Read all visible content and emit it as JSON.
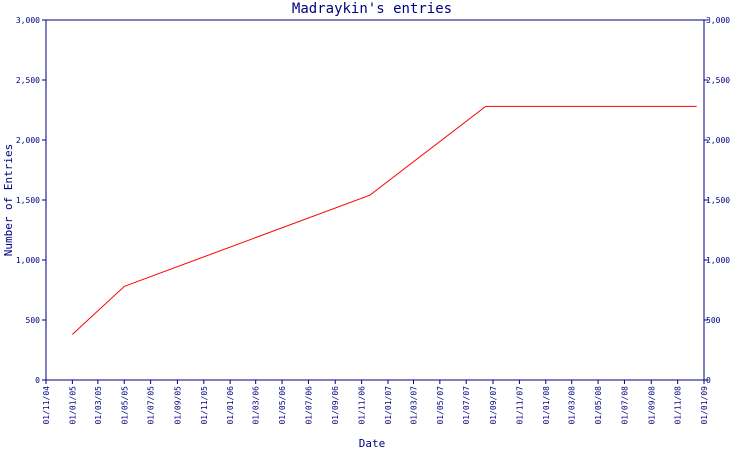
{
  "chart_data": {
    "type": "line",
    "title": "Madraykin's entries",
    "xlabel": "Date",
    "ylabel": "Number of Entries",
    "ylim": [
      0,
      3000
    ],
    "xlim": [
      "2004-11-01",
      "2009-01-01"
    ],
    "y_ticks": [
      "0",
      "500",
      "1,000",
      "1,500",
      "2,000",
      "2,500",
      "3,000"
    ],
    "y_tick_values": [
      0,
      500,
      1000,
      1500,
      2000,
      2500,
      3000
    ],
    "x_ticks": [
      "01/11/04",
      "01/01/05",
      "01/03/05",
      "01/05/05",
      "01/07/05",
      "01/09/05",
      "01/11/05",
      "01/01/06",
      "01/03/06",
      "01/05/06",
      "01/07/06",
      "01/09/06",
      "01/11/06",
      "01/01/07",
      "01/03/07",
      "01/05/07",
      "01/07/07",
      "01/09/07",
      "01/11/07",
      "01/01/08",
      "01/03/08",
      "01/05/08",
      "01/07/08",
      "01/09/08",
      "01/11/08",
      "01/01/09"
    ],
    "x_tick_dates": [
      "2004-11-01",
      "2005-01-01",
      "2005-03-01",
      "2005-05-01",
      "2005-07-01",
      "2005-09-01",
      "2005-11-01",
      "2006-01-01",
      "2006-03-01",
      "2006-05-01",
      "2006-07-01",
      "2006-09-01",
      "2006-11-01",
      "2007-01-01",
      "2007-03-01",
      "2007-05-01",
      "2007-07-01",
      "2007-09-01",
      "2007-11-01",
      "2008-01-01",
      "2008-03-01",
      "2008-05-01",
      "2008-07-01",
      "2008-09-01",
      "2008-11-01",
      "2009-01-01"
    ],
    "grid": false,
    "series": [
      {
        "color": "#ff0000",
        "x": [
          "2005-01-01",
          "2005-05-01",
          "2006-11-20",
          "2007-08-15",
          "2008-12-15"
        ],
        "y": [
          380,
          780,
          1540,
          2280,
          2280
        ]
      }
    ],
    "axis_color": "#000080"
  }
}
